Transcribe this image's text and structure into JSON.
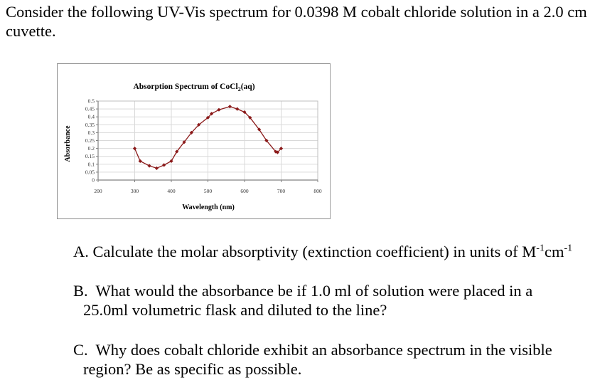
{
  "intro": {
    "text": "Consider the following UV-Vis spectrum for 0.0398 M cobalt chloride solution in a 2.0 cm cuvette."
  },
  "questions": [
    {
      "label": "A.",
      "text": "Calculate the molar absorptivity (extinction coefficient) in units of M",
      "unit_part1_sup": "-1",
      "unit_part2": "cm",
      "unit_part2_sup": "-1"
    },
    {
      "label": "B.",
      "line1": "What would the absorbance be if 1.0 ml of solution were placed in a",
      "line2": "25.0ml volumetric flask and diluted to the line?"
    },
    {
      "label": "C.",
      "line1": "Why does cobalt chloride exhibit an absorbance spectrum in the visible",
      "line2": "region?  Be as specific as possible."
    }
  ],
  "colors": {
    "series": "#8b1a1a",
    "grid": "#d9d9d9",
    "axis": "#808080",
    "frame": "#8c8c8c"
  },
  "chart_data": {
    "type": "line",
    "title": "Absorption Spectrum of CoCl2(aq)",
    "title_main": "Absorption Spectrum of CoCl",
    "title_sub": "2",
    "title_tail": "(aq)",
    "xlabel": "Wavelength (nm)",
    "ylabel": "Absorbance",
    "xlim": [
      200,
      800
    ],
    "ylim": [
      0,
      0.5
    ],
    "x_ticks": [
      "200",
      "300",
      "400",
      "500",
      "600",
      "700",
      "800"
    ],
    "y_ticks": [
      "0",
      "0.05",
      "0.1",
      "0.15",
      "0.2",
      "0.25",
      "0.3",
      "0.35",
      "0.4",
      "0.45",
      "0.5"
    ],
    "grid": true,
    "legend": "none",
    "marker": "diamond",
    "series": [
      {
        "name": "CoCl2(aq)",
        "x": [
          300,
          315,
          340,
          360,
          380,
          400,
          415,
          435,
          455,
          475,
          500,
          510,
          530,
          560,
          580,
          600,
          615,
          640,
          660,
          685,
          690,
          700
        ],
        "values": [
          0.2,
          0.12,
          0.09,
          0.075,
          0.095,
          0.12,
          0.18,
          0.24,
          0.3,
          0.35,
          0.395,
          0.42,
          0.445,
          0.465,
          0.45,
          0.43,
          0.395,
          0.32,
          0.25,
          0.18,
          0.175,
          0.2
        ]
      }
    ]
  }
}
